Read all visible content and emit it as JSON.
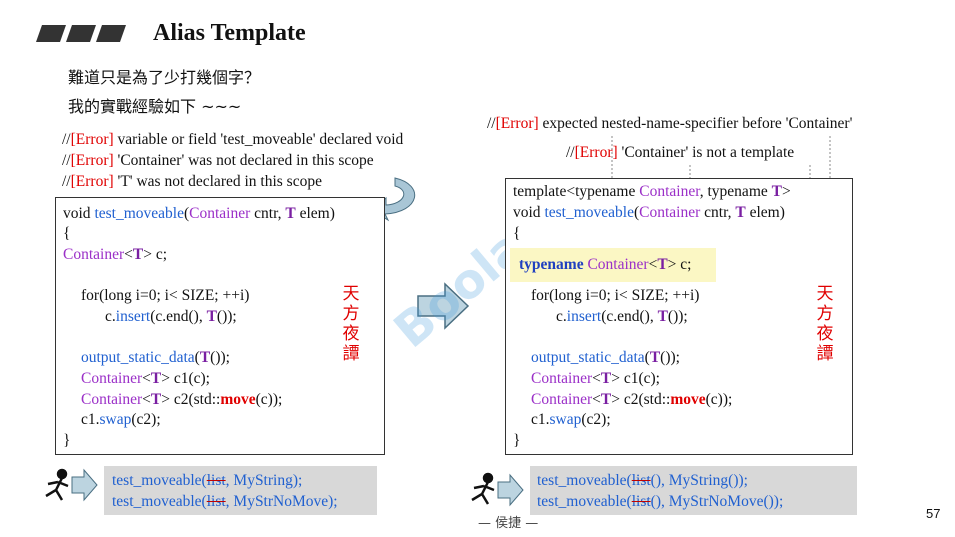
{
  "header": {
    "title": "Alias Template"
  },
  "intro": [
    "難道只是為了少打幾個字？",
    "我的實戰經驗如下 ~~~"
  ],
  "left_errors": [
    [
      {
        "text": "//"
      },
      {
        "text": "[Error]",
        "color": "#e00000"
      },
      {
        "text": " variable or field 'test_moveable' declared void"
      }
    ],
    [
      {
        "text": "//"
      },
      {
        "text": "[Error]",
        "color": "#e00000"
      },
      {
        "text": " 'Container' was not declared in this scope"
      }
    ],
    [
      {
        "text": "//"
      },
      {
        "text": "[Error]",
        "color": "#e00000"
      },
      {
        "text": " 'T' was not declared in this scope"
      }
    ]
  ],
  "right_errors": [
    [
      {
        "text": "//"
      },
      {
        "text": "[Error]",
        "color": "#e00000"
      },
      {
        "text": " expected nested-name-specifier before 'Container'"
      }
    ],
    [
      {
        "text": "//"
      },
      {
        "text": "[Error]",
        "color": "#e00000"
      },
      {
        "text": " 'Container' is not a template"
      }
    ]
  ],
  "left_code": [
    [
      {
        "text": "void "
      },
      {
        "text": "test_moveable",
        "color": "#2060d0"
      },
      {
        "text": "("
      },
      {
        "text": "Container",
        "color": "#9b30c8"
      },
      {
        "text": " cntr, "
      },
      {
        "text": "T",
        "color": "#7a1fa2",
        "bold": true
      },
      {
        "text": " elem)"
      }
    ],
    [
      {
        "text": "{"
      }
    ],
    [
      {
        "text": "Container",
        "color": "#9b30c8"
      },
      {
        "text": "<"
      },
      {
        "text": "T",
        "color": "#7a1fa2",
        "bold": true
      },
      {
        "text": "> c;"
      }
    ],
    [
      {
        "text": "for(long i=0; i< SIZE; ++i)"
      }
    ],
    [
      {
        "text": "c."
      },
      {
        "text": "insert",
        "color": "#2060d0"
      },
      {
        "text": "(c.end(), "
      },
      {
        "text": "T",
        "color": "#7a1fa2",
        "bold": true
      },
      {
        "text": "());"
      }
    ],
    [
      {
        "text": "output_static_data",
        "color": "#2060d0"
      },
      {
        "text": "("
      },
      {
        "text": "T",
        "color": "#7a1fa2",
        "bold": true
      },
      {
        "text": "());"
      }
    ],
    [
      {
        "text": "Container",
        "color": "#9b30c8"
      },
      {
        "text": "<"
      },
      {
        "text": "T",
        "color": "#7a1fa2",
        "bold": true
      },
      {
        "text": "> c1(c);"
      }
    ],
    [
      {
        "text": "Container",
        "color": "#9b30c8"
      },
      {
        "text": "<"
      },
      {
        "text": "T",
        "color": "#7a1fa2",
        "bold": true
      },
      {
        "text": "> c2(std::"
      },
      {
        "text": "move",
        "color": "#e00000",
        "bold": true
      },
      {
        "text": "(c));"
      }
    ],
    [
      {
        "text": "c1."
      },
      {
        "text": "swap",
        "color": "#2060d0"
      },
      {
        "text": "(c2);"
      }
    ],
    [
      {
        "text": "}"
      }
    ]
  ],
  "right_code": [
    [
      {
        "text": "template<typename "
      },
      {
        "text": "Container",
        "color": "#9b30c8"
      },
      {
        "text": ", typename "
      },
      {
        "text": "T",
        "color": "#7a1fa2",
        "bold": true
      },
      {
        "text": ">"
      }
    ],
    [
      {
        "text": "void "
      },
      {
        "text": "test_moveable",
        "color": "#2060d0"
      },
      {
        "text": "("
      },
      {
        "text": "Container",
        "color": "#9b30c8"
      },
      {
        "text": " cntr, "
      },
      {
        "text": "T",
        "color": "#7a1fa2",
        "bold": true
      },
      {
        "text": " elem)"
      }
    ],
    [
      {
        "text": "{"
      }
    ],
    [
      {
        "text": "typename ",
        "color": "#2040c0",
        "bold": true
      },
      {
        "text": "Container",
        "color": "#9b30c8"
      },
      {
        "text": "<"
      },
      {
        "text": "T",
        "color": "#7a1fa2",
        "bold": true
      },
      {
        "text": "> c;"
      }
    ],
    [
      {
        "text": "for(long i=0; i< SIZE; ++i)"
      }
    ],
    [
      {
        "text": "c."
      },
      {
        "text": "insert",
        "color": "#2060d0"
      },
      {
        "text": "(c.end(), "
      },
      {
        "text": "T",
        "color": "#7a1fa2",
        "bold": true
      },
      {
        "text": "());"
      }
    ],
    [
      {
        "text": "output_static_data",
        "color": "#2060d0"
      },
      {
        "text": "("
      },
      {
        "text": "T",
        "color": "#7a1fa2",
        "bold": true
      },
      {
        "text": "());"
      }
    ],
    [
      {
        "text": "Container",
        "color": "#9b30c8"
      },
      {
        "text": "<"
      },
      {
        "text": "T",
        "color": "#7a1fa2",
        "bold": true
      },
      {
        "text": "> c1(c);"
      }
    ],
    [
      {
        "text": "Container",
        "color": "#9b30c8"
      },
      {
        "text": "<"
      },
      {
        "text": "T",
        "color": "#7a1fa2",
        "bold": true
      },
      {
        "text": "> c2(std::"
      },
      {
        "text": "move",
        "color": "#e00000",
        "bold": true
      },
      {
        "text": "(c));"
      }
    ],
    [
      {
        "text": "c1."
      },
      {
        "text": "swap",
        "color": "#2060d0"
      },
      {
        "text": "(c2);"
      }
    ],
    [
      {
        "text": "}"
      }
    ]
  ],
  "left_calls": [
    [
      {
        "text": "test_moveable(",
        "color": "#2060d0"
      },
      {
        "text": "list",
        "color": "#2060d0",
        "strike": true
      },
      {
        "text": ", MyString);",
        "color": "#2060d0"
      }
    ],
    [
      {
        "text": "test_moveable(",
        "color": "#2060d0"
      },
      {
        "text": "list",
        "color": "#2060d0",
        "strike": true
      },
      {
        "text": ", MyStrNoMove);",
        "color": "#2060d0"
      }
    ]
  ],
  "right_calls": [
    [
      {
        "text": "test_moveable(",
        "color": "#2060d0"
      },
      {
        "text": "list",
        "color": "#2060d0",
        "strike": true
      },
      {
        "text": "(), MyString());",
        "color": "#2060d0"
      }
    ],
    [
      {
        "text": "test_moveable(",
        "color": "#2060d0"
      },
      {
        "text": "list",
        "color": "#2060d0",
        "strike": true
      },
      {
        "text": "(), MyStrNoMove());",
        "color": "#2060d0"
      }
    ]
  ],
  "remark_left": "天方夜譚",
  "remark_right": "天方夜譚",
  "watermark": "Boolan",
  "footer": {
    "author": "— 侯捷 —",
    "page": "57"
  }
}
